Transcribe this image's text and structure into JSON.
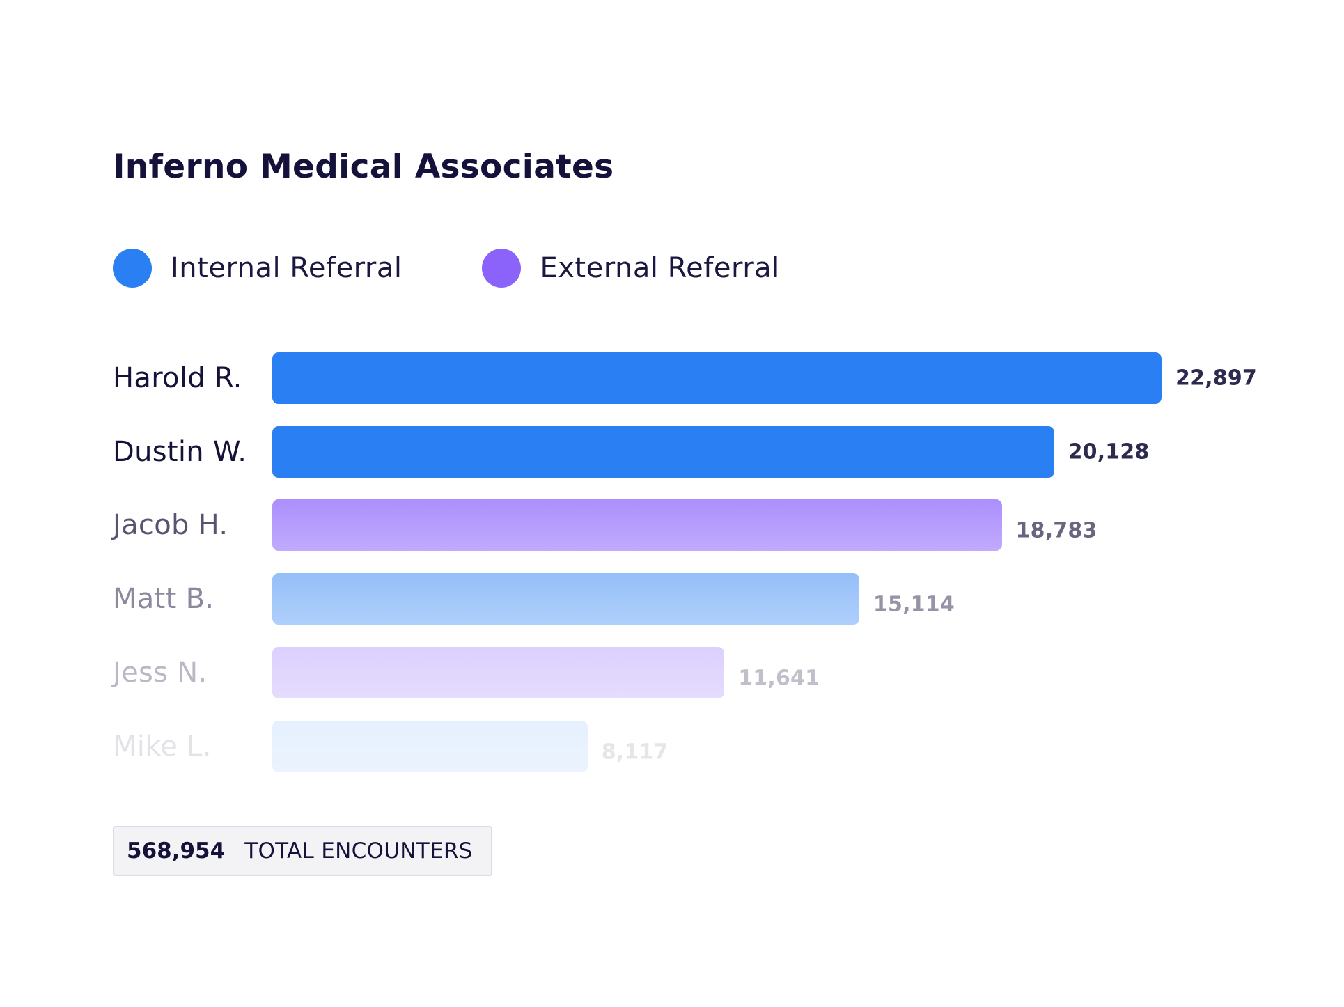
{
  "chart_data": {
    "type": "bar",
    "orientation": "horizontal",
    "title": "Inferno Medical Associates",
    "legend": [
      {
        "name": "Internal Referral",
        "color": "#2a7ff3"
      },
      {
        "name": "External Referral",
        "color": "#8b63fb"
      }
    ],
    "categories": [
      "Harold R.",
      "Dustin W.",
      "Jacob H.",
      "Matt B.",
      "Jess N.",
      "Mike L."
    ],
    "values": [
      22897,
      20128,
      18783,
      15114,
      11641,
      8117
    ],
    "value_labels": [
      "22,897",
      "20,128",
      "18,783",
      "15,114",
      "11,641",
      "8,117"
    ],
    "series_of_bar": [
      "Internal Referral",
      "Internal Referral",
      "External Referral",
      "Internal Referral",
      "External Referral",
      "Internal Referral"
    ],
    "fade": [
      1.0,
      1.0,
      0.72,
      0.5,
      0.3,
      0.12
    ],
    "xlim": [
      0,
      22897
    ],
    "xlabel": "",
    "ylabel": ""
  },
  "total": {
    "value": "568,954",
    "label": "TOTAL ENCOUNTERS"
  }
}
